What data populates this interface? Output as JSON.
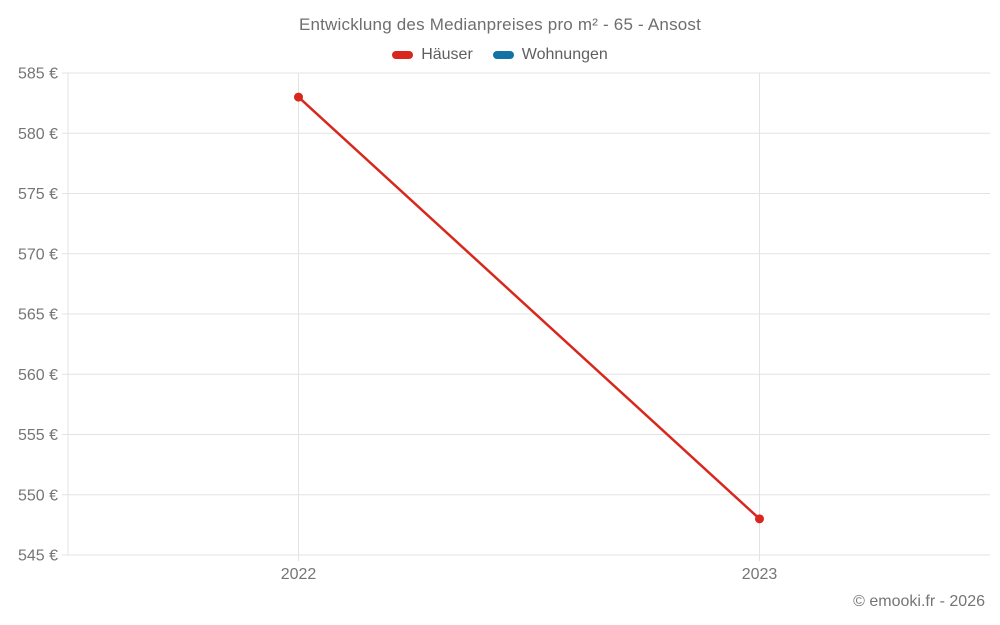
{
  "header": {
    "title": "Entwicklung des Medianpreises pro m² - 65 - Ansost"
  },
  "legend": {
    "items": [
      {
        "label": "Häuser",
        "color": "#d8271d"
      },
      {
        "label": "Wohnungen",
        "color": "#1272a6"
      }
    ]
  },
  "footer": {
    "copyright": "© emooki.fr - 2026"
  },
  "chart_data": {
    "type": "line",
    "title": "Entwicklung des Medianpreises pro m² - 65 - Ansost",
    "categories": [
      "2022",
      "2023"
    ],
    "series": [
      {
        "name": "Häuser",
        "color": "#d8271d",
        "values": [
          583,
          548
        ]
      },
      {
        "name": "Wohnungen",
        "color": "#1272a6",
        "values": []
      }
    ],
    "xlabel": "",
    "ylabel": "",
    "ytick_suffix": " €",
    "ylim": [
      545,
      585
    ],
    "ytick_step": 5,
    "grid": true,
    "legend_position": "top"
  },
  "style": {
    "background": "#ffffff",
    "grid_color": "#e3e3e3",
    "axis_color": "#e3e3e3",
    "tick_label_color": "#757575",
    "title_color": "#6e6e6e",
    "legend_label_color": "#5f5f5f",
    "footer_color": "#757575",
    "line_width": 2.5,
    "point_radius": 4.5
  }
}
